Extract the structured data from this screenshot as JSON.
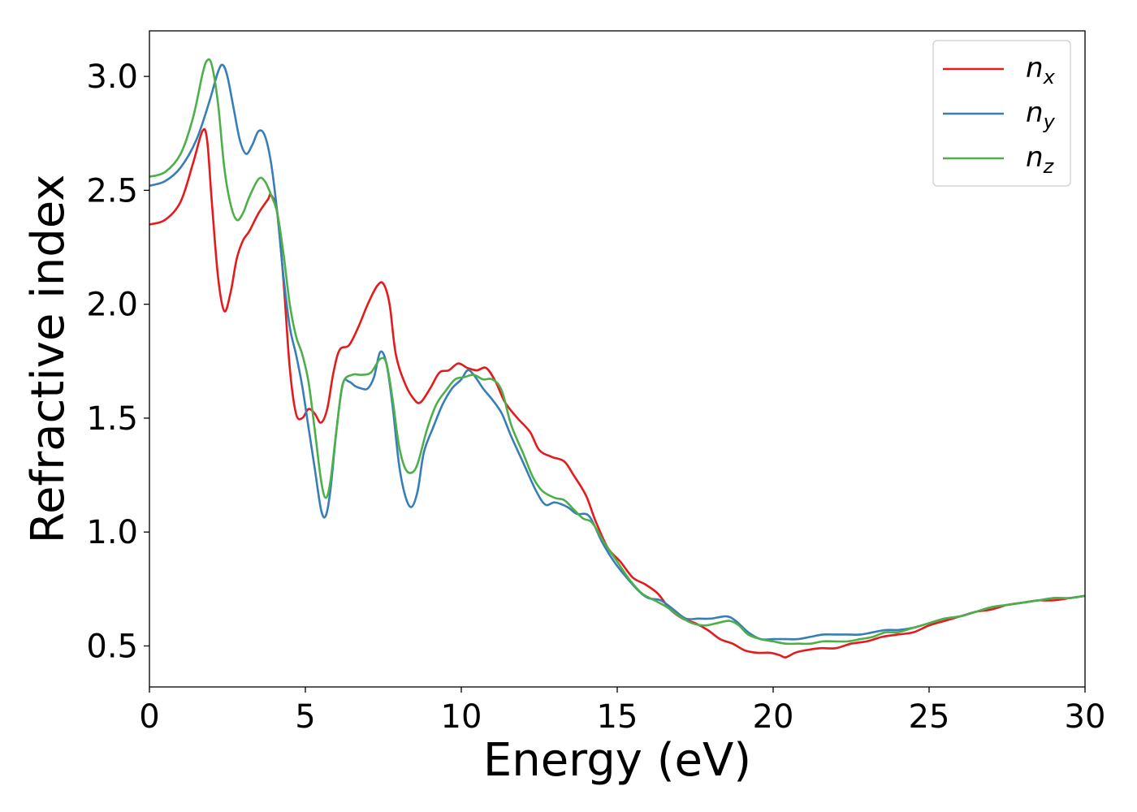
{
  "chart_data": {
    "type": "line",
    "xlabel": "Energy (eV)",
    "ylabel": "Refractive index",
    "xlim": [
      0,
      30
    ],
    "ylim": [
      0.32,
      3.2
    ],
    "xticks": [
      0,
      5,
      10,
      15,
      20,
      25,
      30
    ],
    "xtick_labels": [
      "0",
      "5",
      "10",
      "15",
      "20",
      "25",
      "30"
    ],
    "yticks": [
      0.5,
      1.0,
      1.5,
      2.0,
      2.5,
      3.0
    ],
    "ytick_labels": [
      "0.5",
      "1.0",
      "1.5",
      "2.0",
      "2.5",
      "3.0"
    ],
    "grid": false,
    "legend_position": "top-right",
    "series": [
      {
        "name": "n_x",
        "label_base": "n",
        "label_sub": "x",
        "color": "#e41a1c",
        "points": [
          [
            0,
            2.35
          ],
          [
            0.5,
            2.37
          ],
          [
            1.0,
            2.45
          ],
          [
            1.4,
            2.62
          ],
          [
            1.7,
            2.76
          ],
          [
            1.85,
            2.72
          ],
          [
            2.0,
            2.45
          ],
          [
            2.2,
            2.12
          ],
          [
            2.4,
            1.97
          ],
          [
            2.6,
            2.05
          ],
          [
            2.8,
            2.2
          ],
          [
            3.0,
            2.28
          ],
          [
            3.2,
            2.32
          ],
          [
            3.5,
            2.4
          ],
          [
            3.8,
            2.46
          ],
          [
            3.9,
            2.48
          ],
          [
            4.1,
            2.4
          ],
          [
            4.3,
            2.1
          ],
          [
            4.5,
            1.72
          ],
          [
            4.7,
            1.52
          ],
          [
            4.9,
            1.5
          ],
          [
            5.1,
            1.54
          ],
          [
            5.3,
            1.52
          ],
          [
            5.5,
            1.48
          ],
          [
            5.7,
            1.54
          ],
          [
            5.9,
            1.7
          ],
          [
            6.1,
            1.8
          ],
          [
            6.4,
            1.82
          ],
          [
            6.7,
            1.9
          ],
          [
            7.0,
            2.0
          ],
          [
            7.3,
            2.08
          ],
          [
            7.5,
            2.09
          ],
          [
            7.7,
            2.0
          ],
          [
            7.9,
            1.78
          ],
          [
            8.2,
            1.65
          ],
          [
            8.5,
            1.58
          ],
          [
            8.7,
            1.57
          ],
          [
            9.0,
            1.63
          ],
          [
            9.3,
            1.7
          ],
          [
            9.6,
            1.71
          ],
          [
            9.9,
            1.74
          ],
          [
            10.2,
            1.72
          ],
          [
            10.5,
            1.71
          ],
          [
            10.8,
            1.72
          ],
          [
            11.1,
            1.66
          ],
          [
            11.4,
            1.57
          ],
          [
            11.8,
            1.5
          ],
          [
            12.2,
            1.44
          ],
          [
            12.5,
            1.36
          ],
          [
            12.9,
            1.33
          ],
          [
            13.3,
            1.31
          ],
          [
            13.6,
            1.25
          ],
          [
            14.0,
            1.16
          ],
          [
            14.3,
            1.05
          ],
          [
            14.7,
            0.93
          ],
          [
            15.1,
            0.87
          ],
          [
            15.5,
            0.8
          ],
          [
            15.9,
            0.77
          ],
          [
            16.3,
            0.73
          ],
          [
            16.7,
            0.66
          ],
          [
            17.1,
            0.62
          ],
          [
            17.5,
            0.6
          ],
          [
            17.9,
            0.57
          ],
          [
            18.3,
            0.53
          ],
          [
            18.7,
            0.51
          ],
          [
            19.1,
            0.48
          ],
          [
            19.5,
            0.47
          ],
          [
            19.9,
            0.47
          ],
          [
            20.2,
            0.46
          ],
          [
            20.4,
            0.45
          ],
          [
            20.7,
            0.47
          ],
          [
            21.0,
            0.48
          ],
          [
            21.5,
            0.49
          ],
          [
            22.0,
            0.49
          ],
          [
            22.5,
            0.51
          ],
          [
            23.0,
            0.52
          ],
          [
            23.5,
            0.54
          ],
          [
            24.0,
            0.55
          ],
          [
            24.5,
            0.56
          ],
          [
            25.0,
            0.59
          ],
          [
            25.5,
            0.61
          ],
          [
            26.0,
            0.63
          ],
          [
            26.5,
            0.65
          ],
          [
            27.0,
            0.66
          ],
          [
            27.5,
            0.68
          ],
          [
            28.0,
            0.69
          ],
          [
            28.5,
            0.7
          ],
          [
            29.0,
            0.7
          ],
          [
            29.5,
            0.71
          ],
          [
            30.0,
            0.72
          ]
        ]
      },
      {
        "name": "n_y",
        "label_base": "n",
        "label_sub": "y",
        "color": "#377eb8",
        "points": [
          [
            0,
            2.52
          ],
          [
            0.5,
            2.54
          ],
          [
            1.0,
            2.6
          ],
          [
            1.5,
            2.72
          ],
          [
            1.9,
            2.88
          ],
          [
            2.2,
            3.02
          ],
          [
            2.35,
            3.05
          ],
          [
            2.5,
            3.0
          ],
          [
            2.7,
            2.86
          ],
          [
            2.9,
            2.72
          ],
          [
            3.1,
            2.66
          ],
          [
            3.3,
            2.7
          ],
          [
            3.5,
            2.76
          ],
          [
            3.7,
            2.74
          ],
          [
            3.9,
            2.62
          ],
          [
            4.1,
            2.4
          ],
          [
            4.3,
            2.12
          ],
          [
            4.5,
            1.9
          ],
          [
            4.7,
            1.78
          ],
          [
            4.9,
            1.64
          ],
          [
            5.1,
            1.46
          ],
          [
            5.3,
            1.28
          ],
          [
            5.5,
            1.1
          ],
          [
            5.65,
            1.07
          ],
          [
            5.8,
            1.18
          ],
          [
            6.0,
            1.45
          ],
          [
            6.2,
            1.65
          ],
          [
            6.4,
            1.66
          ],
          [
            6.6,
            1.64
          ],
          [
            6.8,
            1.63
          ],
          [
            7.0,
            1.63
          ],
          [
            7.2,
            1.68
          ],
          [
            7.4,
            1.79
          ],
          [
            7.6,
            1.74
          ],
          [
            7.8,
            1.55
          ],
          [
            8.0,
            1.3
          ],
          [
            8.2,
            1.16
          ],
          [
            8.4,
            1.11
          ],
          [
            8.6,
            1.18
          ],
          [
            8.8,
            1.35
          ],
          [
            9.1,
            1.46
          ],
          [
            9.4,
            1.56
          ],
          [
            9.7,
            1.63
          ],
          [
            10.0,
            1.67
          ],
          [
            10.2,
            1.71
          ],
          [
            10.4,
            1.69
          ],
          [
            10.7,
            1.63
          ],
          [
            11.0,
            1.58
          ],
          [
            11.3,
            1.52
          ],
          [
            11.6,
            1.42
          ],
          [
            12.0,
            1.3
          ],
          [
            12.4,
            1.18
          ],
          [
            12.7,
            1.12
          ],
          [
            13.0,
            1.13
          ],
          [
            13.4,
            1.11
          ],
          [
            13.7,
            1.08
          ],
          [
            14.1,
            1.07
          ],
          [
            14.5,
            0.96
          ],
          [
            14.9,
            0.87
          ],
          [
            15.3,
            0.8
          ],
          [
            15.7,
            0.74
          ],
          [
            16.0,
            0.71
          ],
          [
            16.4,
            0.7
          ],
          [
            16.8,
            0.66
          ],
          [
            17.2,
            0.62
          ],
          [
            17.6,
            0.62
          ],
          [
            18.0,
            0.62
          ],
          [
            18.5,
            0.63
          ],
          [
            18.8,
            0.61
          ],
          [
            19.2,
            0.56
          ],
          [
            19.6,
            0.53
          ],
          [
            20.0,
            0.53
          ],
          [
            20.4,
            0.53
          ],
          [
            20.8,
            0.53
          ],
          [
            21.2,
            0.54
          ],
          [
            21.6,
            0.55
          ],
          [
            22.0,
            0.55
          ],
          [
            22.4,
            0.55
          ],
          [
            22.8,
            0.55
          ],
          [
            23.2,
            0.56
          ],
          [
            23.6,
            0.57
          ],
          [
            24.0,
            0.57
          ],
          [
            24.5,
            0.58
          ],
          [
            25.0,
            0.6
          ],
          [
            25.5,
            0.62
          ],
          [
            26.0,
            0.63
          ],
          [
            26.5,
            0.65
          ],
          [
            27.0,
            0.67
          ],
          [
            27.5,
            0.68
          ],
          [
            28.0,
            0.69
          ],
          [
            28.5,
            0.7
          ],
          [
            29.0,
            0.71
          ],
          [
            29.5,
            0.71
          ],
          [
            30.0,
            0.72
          ]
        ]
      },
      {
        "name": "n_z",
        "label_base": "n",
        "label_sub": "z",
        "color": "#4daf4a",
        "points": [
          [
            0,
            2.56
          ],
          [
            0.5,
            2.58
          ],
          [
            1.0,
            2.66
          ],
          [
            1.4,
            2.82
          ],
          [
            1.7,
            3.01
          ],
          [
            1.85,
            3.07
          ],
          [
            2.0,
            3.05
          ],
          [
            2.2,
            2.88
          ],
          [
            2.4,
            2.6
          ],
          [
            2.6,
            2.44
          ],
          [
            2.8,
            2.37
          ],
          [
            3.0,
            2.4
          ],
          [
            3.2,
            2.47
          ],
          [
            3.5,
            2.55
          ],
          [
            3.7,
            2.54
          ],
          [
            3.9,
            2.48
          ],
          [
            4.1,
            2.4
          ],
          [
            4.3,
            2.22
          ],
          [
            4.5,
            2.0
          ],
          [
            4.7,
            1.86
          ],
          [
            4.9,
            1.78
          ],
          [
            5.1,
            1.66
          ],
          [
            5.3,
            1.45
          ],
          [
            5.5,
            1.23
          ],
          [
            5.65,
            1.15
          ],
          [
            5.8,
            1.22
          ],
          [
            6.0,
            1.45
          ],
          [
            6.2,
            1.65
          ],
          [
            6.5,
            1.69
          ],
          [
            6.8,
            1.69
          ],
          [
            7.1,
            1.7
          ],
          [
            7.4,
            1.76
          ],
          [
            7.6,
            1.74
          ],
          [
            7.8,
            1.58
          ],
          [
            8.0,
            1.38
          ],
          [
            8.2,
            1.28
          ],
          [
            8.4,
            1.26
          ],
          [
            8.6,
            1.3
          ],
          [
            8.9,
            1.45
          ],
          [
            9.2,
            1.56
          ],
          [
            9.5,
            1.62
          ],
          [
            9.8,
            1.67
          ],
          [
            10.1,
            1.68
          ],
          [
            10.4,
            1.69
          ],
          [
            10.7,
            1.67
          ],
          [
            11.0,
            1.67
          ],
          [
            11.3,
            1.62
          ],
          [
            11.6,
            1.47
          ],
          [
            12.0,
            1.34
          ],
          [
            12.3,
            1.24
          ],
          [
            12.6,
            1.18
          ],
          [
            13.0,
            1.15
          ],
          [
            13.3,
            1.14
          ],
          [
            13.6,
            1.1
          ],
          [
            13.9,
            1.06
          ],
          [
            14.2,
            1.04
          ],
          [
            14.6,
            0.95
          ],
          [
            15.0,
            0.87
          ],
          [
            15.4,
            0.79
          ],
          [
            15.8,
            0.73
          ],
          [
            16.2,
            0.7
          ],
          [
            16.6,
            0.67
          ],
          [
            17.0,
            0.63
          ],
          [
            17.4,
            0.6
          ],
          [
            17.8,
            0.59
          ],
          [
            18.2,
            0.6
          ],
          [
            18.6,
            0.61
          ],
          [
            18.9,
            0.59
          ],
          [
            19.2,
            0.55
          ],
          [
            19.6,
            0.53
          ],
          [
            20.0,
            0.52
          ],
          [
            20.4,
            0.51
          ],
          [
            20.8,
            0.51
          ],
          [
            21.2,
            0.51
          ],
          [
            21.6,
            0.52
          ],
          [
            22.0,
            0.52
          ],
          [
            22.4,
            0.52
          ],
          [
            22.8,
            0.53
          ],
          [
            23.2,
            0.54
          ],
          [
            23.6,
            0.56
          ],
          [
            24.0,
            0.56
          ],
          [
            24.5,
            0.58
          ],
          [
            25.0,
            0.6
          ],
          [
            25.5,
            0.62
          ],
          [
            26.0,
            0.63
          ],
          [
            26.5,
            0.65
          ],
          [
            27.0,
            0.67
          ],
          [
            27.5,
            0.68
          ],
          [
            28.0,
            0.69
          ],
          [
            28.5,
            0.7
          ],
          [
            29.0,
            0.71
          ],
          [
            29.5,
            0.71
          ],
          [
            30.0,
            0.72
          ]
        ]
      }
    ]
  }
}
